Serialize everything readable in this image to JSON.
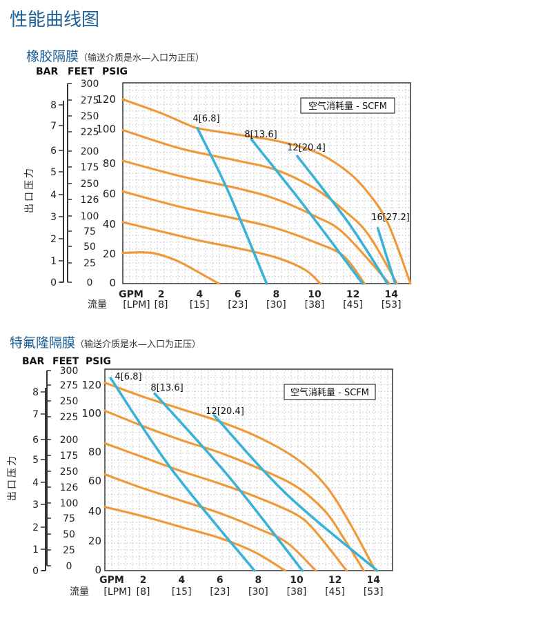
{
  "page": {
    "title": "性能曲线图"
  },
  "sections": [
    {
      "title": "橡胶隔膜",
      "note": "（输送介质是水—入口为正压）"
    },
    {
      "title": "特氟隆隔膜",
      "note": "（输送介质是水—入口为正压）"
    }
  ],
  "chart_data": [
    {
      "type": "line",
      "title": "橡胶隔膜（输送介质是水—入口为正压）",
      "legend": "空气消耗量 - SCFM",
      "legend_position": "top-right",
      "grid": true,
      "ylabel": "出口压力",
      "xlabel": "流量",
      "xlim": [
        0,
        15
      ],
      "ylim": [
        0,
        130
      ],
      "unit_headers": {
        "bar": "BAR",
        "feet": "FEET",
        "psig": "PSIG",
        "gpm": "GPM",
        "lpm_label": "流量"
      },
      "bar_ticks": [
        "8",
        "7",
        "6",
        "5",
        "4",
        "3",
        "2",
        "1",
        "0"
      ],
      "feet_ticks": [
        "300",
        "275",
        "250",
        "225",
        "200",
        "175",
        "250",
        "126",
        "100",
        "75",
        "50",
        "25",
        "0"
      ],
      "psig_ticks": [
        "120",
        "100",
        "80",
        "60",
        "40",
        "20",
        "0"
      ],
      "x_ticks_gpm": [
        "2",
        "4",
        "6",
        "8",
        "10",
        "12",
        "14"
      ],
      "x_ticks_lpm": [
        "[LPM]",
        "[8]",
        "[15]",
        "[23]",
        "[30]",
        "[38]",
        "[45]",
        "[53]"
      ],
      "pressure_series": [
        {
          "x": [
            0,
            2,
            3.3,
            4,
            6,
            8,
            10,
            11.5,
            12.6,
            13.8,
            15
          ],
          "y": [
            120,
            111,
            104,
            101,
            97,
            93,
            86,
            75,
            62,
            40,
            0
          ]
        },
        {
          "x": [
            0,
            3,
            6,
            8,
            10,
            11.5,
            12.8,
            14.3
          ],
          "y": [
            100,
            88,
            80,
            74,
            62,
            48,
            32,
            0
          ]
        },
        {
          "x": [
            0,
            3,
            6,
            8,
            10,
            11.5,
            13.9
          ],
          "y": [
            80,
            70,
            62,
            55,
            44,
            33,
            0
          ]
        },
        {
          "x": [
            0,
            3,
            6,
            8,
            10,
            11.5,
            12.6
          ],
          "y": [
            60,
            50,
            42,
            36,
            27,
            18,
            0
          ]
        },
        {
          "x": [
            0,
            2,
            4,
            6,
            8,
            9.5,
            10.3
          ],
          "y": [
            40,
            34,
            28,
            23,
            17,
            9,
            0
          ]
        },
        {
          "x": [
            0,
            1.5,
            2.8,
            4,
            5
          ],
          "y": [
            20,
            20,
            15,
            7,
            0
          ]
        }
      ],
      "air_series": [
        {
          "name": "4[6.8]",
          "x": [
            3.9,
            5.5,
            7.5
          ],
          "y": [
            101,
            60,
            0
          ]
        },
        {
          "name": "8[13.6]",
          "x": [
            6.7,
            9.5,
            12.5
          ],
          "y": [
            94,
            50,
            0
          ]
        },
        {
          "name": "12[20.4]",
          "x": [
            9.1,
            11.8,
            13.8
          ],
          "y": [
            83,
            39,
            0
          ]
        },
        {
          "name": "16[27.2]",
          "x": [
            13.3,
            14.2
          ],
          "y": [
            36,
            0
          ]
        }
      ]
    },
    {
      "type": "line",
      "title": "特氟隆隔膜（输送介质是水—入口为正压）",
      "legend": "空气消耗量 - SCFM",
      "legend_position": "top-right",
      "grid": true,
      "ylabel": "出口压力",
      "xlabel": "流量",
      "xlim": [
        0,
        15
      ],
      "ylim": [
        0,
        130
      ],
      "unit_headers": {
        "bar": "BAR",
        "feet": "FEET",
        "psig": "PSIG",
        "gpm": "GPM",
        "lpm_label": "流量"
      },
      "bar_ticks": [
        "8",
        "7",
        "6",
        "5",
        "4",
        "3",
        "2",
        "1",
        "0"
      ],
      "feet_ticks": [
        "300",
        "275",
        "250",
        "225",
        "200",
        "175",
        "250",
        "126",
        "100",
        "75",
        "50",
        "25",
        "0"
      ],
      "psig_ticks": [
        "120",
        "100",
        "80",
        "60",
        "40",
        "20",
        "0"
      ],
      "x_ticks_gpm": [
        "2",
        "4",
        "6",
        "8",
        "10",
        "12",
        "14"
      ],
      "x_ticks_lpm": [
        "[LPM]",
        "[8]",
        "[15]",
        "[23]",
        "[30]",
        "[38]",
        "[45]",
        "[53]"
      ],
      "pressure_series": [
        {
          "x": [
            0,
            2,
            4,
            6,
            8,
            10,
            11.5,
            12.8,
            14.1
          ],
          "y": [
            121,
            112,
            104,
            96,
            86,
            72,
            55,
            30,
            0
          ]
        },
        {
          "x": [
            0,
            2,
            4,
            6,
            8,
            10,
            11.5,
            12.5,
            13.5
          ],
          "y": [
            103,
            93,
            84,
            76,
            66,
            54,
            38,
            20,
            0
          ]
        },
        {
          "x": [
            0,
            2,
            4,
            6,
            8,
            10,
            11,
            12.6
          ],
          "y": [
            82,
            73,
            64,
            56,
            47,
            36,
            25,
            0
          ]
        },
        {
          "x": [
            0,
            2,
            4,
            6,
            8,
            9.5,
            11
          ],
          "y": [
            62,
            53,
            45,
            37,
            27,
            18,
            0
          ]
        },
        {
          "x": [
            0,
            2,
            4,
            6,
            7.8,
            9.4
          ],
          "y": [
            41,
            35,
            28,
            21,
            12,
            0
          ]
        }
      ],
      "air_series": [
        {
          "name": "4[6.8]",
          "x": [
            0.3,
            3.5,
            7.8
          ],
          "y": [
            124,
            65,
            0
          ]
        },
        {
          "name": "8[13.6]",
          "x": [
            2.6,
            6.5,
            10.3
          ],
          "y": [
            114,
            60,
            0
          ]
        },
        {
          "name": "12[20.4]",
          "x": [
            5.7,
            9.5,
            14.2
          ],
          "y": [
            100,
            49,
            0
          ]
        }
      ]
    }
  ]
}
